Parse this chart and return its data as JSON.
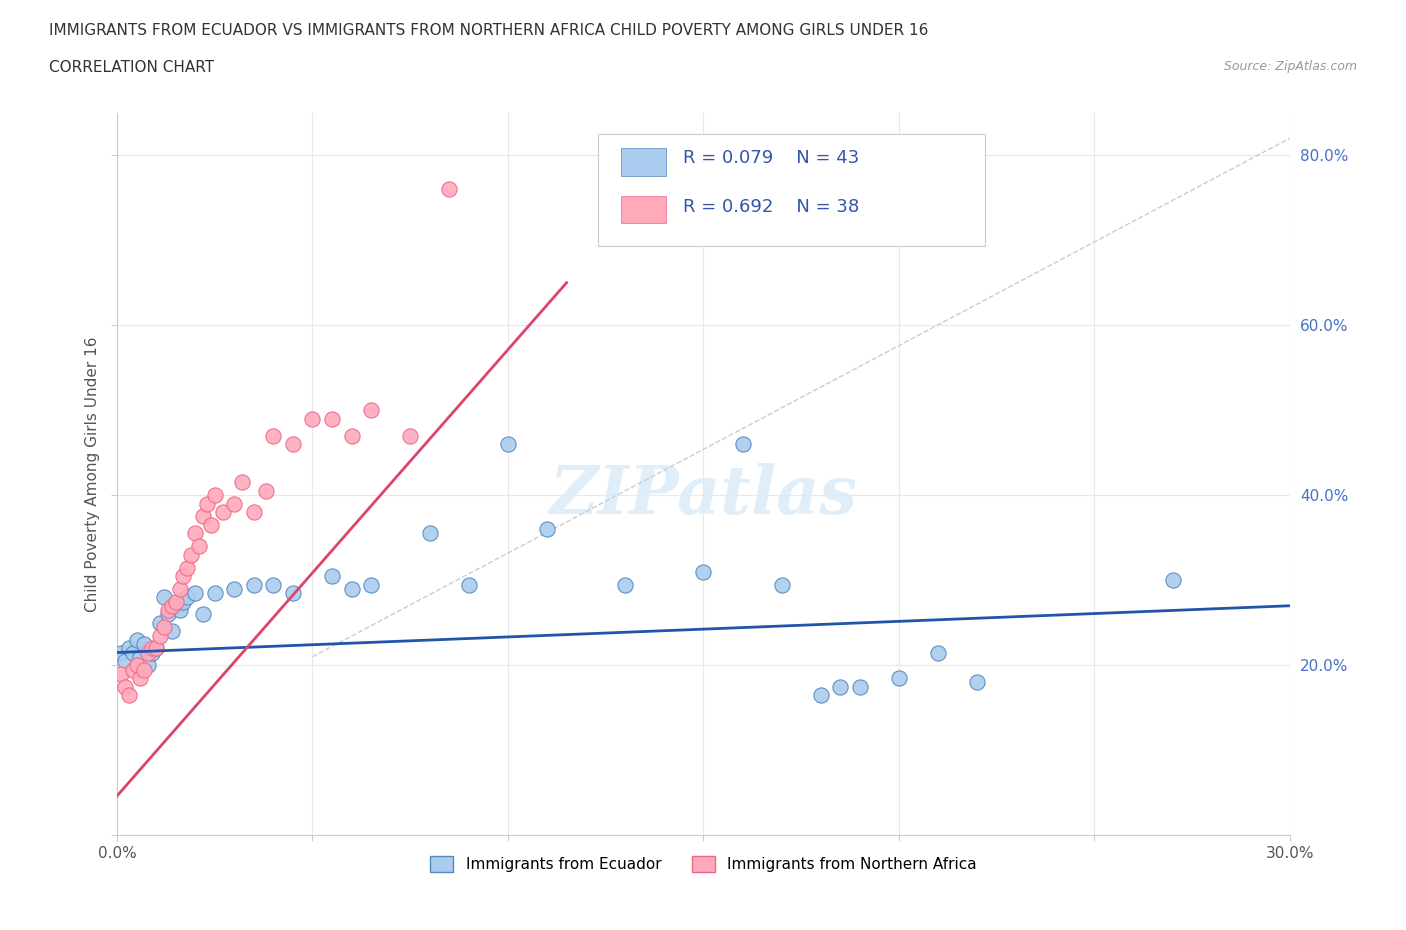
{
  "title": "IMMIGRANTS FROM ECUADOR VS IMMIGRANTS FROM NORTHERN AFRICA CHILD POVERTY AMONG GIRLS UNDER 16",
  "subtitle": "CORRELATION CHART",
  "source": "Source: ZipAtlas.com",
  "ylabel": "Child Poverty Among Girls Under 16",
  "xlim": [
    0.0,
    0.3
  ],
  "ylim": [
    0.0,
    0.85
  ],
  "xticks": [
    0.0,
    0.05,
    0.1,
    0.15,
    0.2,
    0.25,
    0.3
  ],
  "xticklabels": [
    "0.0%",
    "",
    "",
    "",
    "",
    "",
    "30.0%"
  ],
  "yticks": [
    0.0,
    0.2,
    0.4,
    0.6,
    0.8
  ],
  "yticklabels": [
    "",
    "20.0%",
    "40.0%",
    "60.0%",
    "80.0%"
  ],
  "ecuador_color": "#aaccee",
  "ecuador_edge": "#5588bb",
  "northern_color": "#ffaabb",
  "northern_edge": "#ee6688",
  "ecuador_line_color": "#2255aa",
  "northern_line_color": "#dd4466",
  "legend_r_ecuador": "R = 0.079",
  "legend_n_ecuador": "N = 43",
  "legend_r_northern": "R = 0.692",
  "legend_n_northern": "N = 38",
  "legend_label_ecuador": "Immigrants from Ecuador",
  "legend_label_northern": "Immigrants from Northern Africa",
  "ecuador_x": [
    0.001,
    0.002,
    0.003,
    0.004,
    0.005,
    0.006,
    0.007,
    0.008,
    0.009,
    0.01,
    0.011,
    0.012,
    0.013,
    0.014,
    0.015,
    0.016,
    0.017,
    0.018,
    0.02,
    0.022,
    0.025,
    0.03,
    0.035,
    0.04,
    0.045,
    0.055,
    0.06,
    0.065,
    0.08,
    0.09,
    0.1,
    0.11,
    0.13,
    0.15,
    0.16,
    0.17,
    0.18,
    0.185,
    0.19,
    0.2,
    0.21,
    0.22,
    0.27
  ],
  "ecuador_y": [
    0.215,
    0.205,
    0.22,
    0.215,
    0.23,
    0.21,
    0.225,
    0.2,
    0.215,
    0.22,
    0.25,
    0.28,
    0.26,
    0.24,
    0.27,
    0.265,
    0.275,
    0.28,
    0.285,
    0.26,
    0.285,
    0.29,
    0.295,
    0.295,
    0.285,
    0.305,
    0.29,
    0.295,
    0.355,
    0.295,
    0.46,
    0.36,
    0.295,
    0.31,
    0.46,
    0.295,
    0.165,
    0.175,
    0.175,
    0.185,
    0.215,
    0.18,
    0.3
  ],
  "northern_x": [
    0.001,
    0.002,
    0.003,
    0.004,
    0.005,
    0.006,
    0.007,
    0.008,
    0.009,
    0.01,
    0.011,
    0.012,
    0.013,
    0.014,
    0.015,
    0.016,
    0.017,
    0.018,
    0.019,
    0.02,
    0.021,
    0.022,
    0.023,
    0.024,
    0.025,
    0.027,
    0.03,
    0.032,
    0.035,
    0.038,
    0.04,
    0.045,
    0.05,
    0.055,
    0.06,
    0.065,
    0.075,
    0.085
  ],
  "northern_y": [
    0.19,
    0.175,
    0.165,
    0.195,
    0.2,
    0.185,
    0.195,
    0.215,
    0.22,
    0.22,
    0.235,
    0.245,
    0.265,
    0.27,
    0.275,
    0.29,
    0.305,
    0.315,
    0.33,
    0.355,
    0.34,
    0.375,
    0.39,
    0.365,
    0.4,
    0.38,
    0.39,
    0.415,
    0.38,
    0.405,
    0.47,
    0.46,
    0.49,
    0.49,
    0.47,
    0.5,
    0.47,
    0.76
  ],
  "watermark": "ZIPatlas",
  "background_color": "#ffffff",
  "grid_color": "#e8e8e8"
}
